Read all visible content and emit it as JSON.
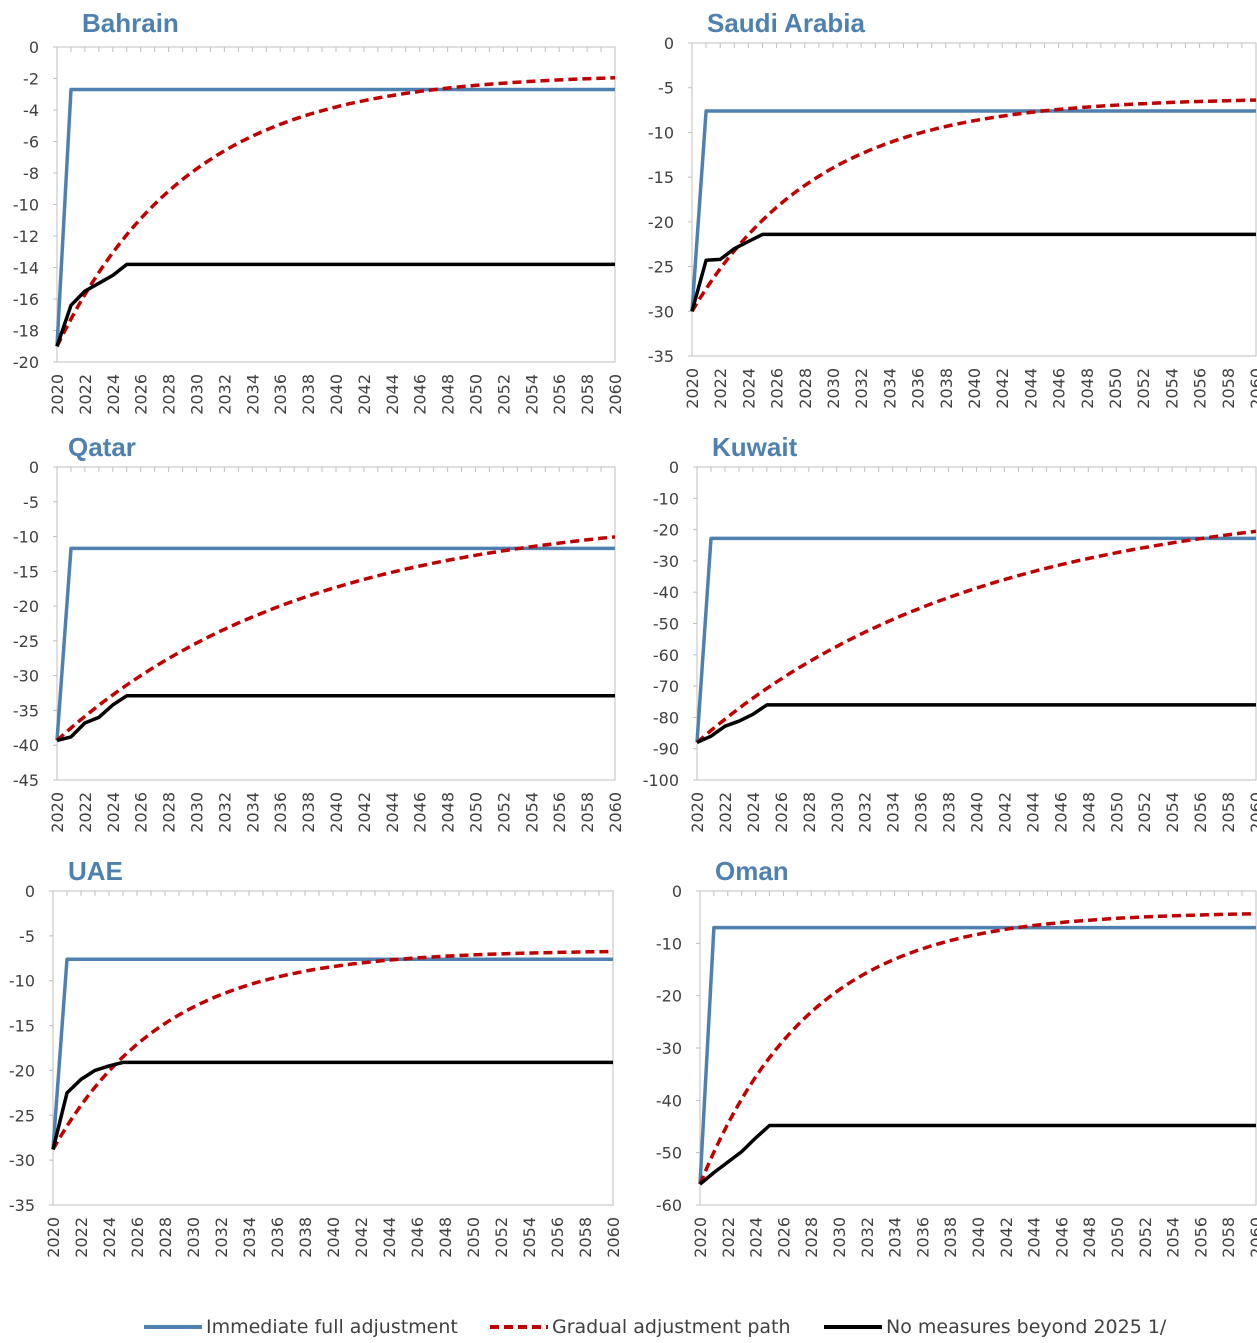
{
  "colors": {
    "immediate": "#4f81b0",
    "gradual": "#c00000",
    "no_measures": "#000000",
    "title": "#4f81b0",
    "axis": "#bfbfbf",
    "tick_text": "#404040"
  },
  "legend": {
    "immediate": "Immediate full adjustment",
    "gradual": "Gradual adjustment path",
    "no_measures": "No measures beyond 2025 1/"
  },
  "chart_data": [
    {
      "type": "line",
      "title": "Bahrain",
      "xlabel": "",
      "ylabel": "",
      "x_range": [
        2020,
        2060
      ],
      "x_ticks": [
        2020,
        2022,
        2024,
        2026,
        2028,
        2030,
        2032,
        2034,
        2036,
        2038,
        2040,
        2042,
        2044,
        2046,
        2048,
        2050,
        2052,
        2054,
        2056,
        2058,
        2060
      ],
      "ylim": [
        -20,
        0
      ],
      "y_ticks": [
        0,
        -2,
        -4,
        -6,
        -8,
        -10,
        -12,
        -14,
        -16,
        -18,
        -20
      ],
      "grid": false,
      "legend_position": "bottom",
      "series": [
        {
          "key": "immediate",
          "x": [
            2020,
            2021,
            2060
          ],
          "values": [
            -19,
            -2.7,
            -2.7
          ]
        },
        {
          "key": "gradual",
          "tau": 9.5,
          "start": -19,
          "end": -1.7,
          "x": [
            2020,
            2060
          ]
        },
        {
          "key": "no_measures",
          "x": [
            2020,
            2021,
            2022,
            2023,
            2024,
            2025,
            2060
          ],
          "values": [
            -19,
            -16.4,
            -15.5,
            -15.0,
            -14.5,
            -13.8,
            -13.8
          ]
        }
      ]
    },
    {
      "type": "line",
      "title": "Saudi Arabia",
      "xlabel": "",
      "ylabel": "",
      "x_range": [
        2020,
        2060
      ],
      "x_ticks": [
        2020,
        2022,
        2024,
        2026,
        2028,
        2030,
        2032,
        2034,
        2036,
        2038,
        2040,
        2042,
        2044,
        2046,
        2048,
        2050,
        2052,
        2054,
        2056,
        2058,
        2060
      ],
      "ylim": [
        -35,
        0
      ],
      "y_ticks": [
        0,
        -5,
        -10,
        -15,
        -20,
        -25,
        -30,
        -35
      ],
      "grid": false,
      "legend_position": "bottom",
      "series": [
        {
          "key": "immediate",
          "x": [
            2020,
            2021,
            2060
          ],
          "values": [
            -30,
            -7.6,
            -7.6
          ]
        },
        {
          "key": "gradual",
          "tau": 9,
          "start": -30,
          "end": -6.1,
          "x": [
            2020,
            2060
          ]
        },
        {
          "key": "no_measures",
          "x": [
            2020,
            2021,
            2022,
            2023,
            2024,
            2025,
            2060
          ],
          "values": [
            -30,
            -24.3,
            -24.2,
            -23.0,
            -22.2,
            -21.4,
            -21.4
          ]
        }
      ]
    },
    {
      "type": "line",
      "title": "Qatar",
      "xlabel": "",
      "ylabel": "",
      "x_range": [
        2020,
        2060
      ],
      "x_ticks": [
        2020,
        2022,
        2024,
        2026,
        2028,
        2030,
        2032,
        2034,
        2036,
        2038,
        2040,
        2042,
        2044,
        2046,
        2048,
        2050,
        2052,
        2054,
        2056,
        2058,
        2060
      ],
      "ylim": [
        -45,
        0
      ],
      "y_ticks": [
        0,
        -5,
        -10,
        -15,
        -20,
        -25,
        -30,
        -35,
        -40,
        -45
      ],
      "grid": false,
      "legend_position": "bottom",
      "series": [
        {
          "key": "immediate",
          "x": [
            2020,
            2021,
            2060
          ],
          "values": [
            -39.3,
            -11.7,
            -11.7
          ]
        },
        {
          "key": "gradual",
          "tau": 18,
          "start": -39.3,
          "end": -6.5,
          "x": [
            2020,
            2060
          ]
        },
        {
          "key": "no_measures",
          "x": [
            2020,
            2021,
            2022,
            2023,
            2024,
            2025,
            2060
          ],
          "values": [
            -39.3,
            -38.8,
            -36.8,
            -36.0,
            -34.2,
            -32.9,
            -32.9
          ]
        }
      ]
    },
    {
      "type": "line",
      "title": "Kuwait",
      "xlabel": "",
      "ylabel": "",
      "x_range": [
        2020,
        2060
      ],
      "x_ticks": [
        2020,
        2022,
        2024,
        2026,
        2028,
        2030,
        2032,
        2034,
        2036,
        2038,
        2040,
        2042,
        2044,
        2046,
        2048,
        2050,
        2052,
        2054,
        2056,
        2058,
        2060
      ],
      "ylim": [
        -100,
        0
      ],
      "y_ticks": [
        0,
        -10,
        -20,
        -30,
        -40,
        -50,
        -60,
        -70,
        -80,
        -90,
        -100
      ],
      "grid": false,
      "legend_position": "bottom",
      "series": [
        {
          "key": "immediate",
          "x": [
            2020,
            2021,
            2060
          ],
          "values": [
            -88,
            -22.8,
            -22.8
          ]
        },
        {
          "key": "gradual",
          "tau": 20,
          "start": -88,
          "end": -10,
          "x": [
            2020,
            2060
          ]
        },
        {
          "key": "no_measures",
          "x": [
            2020,
            2021,
            2022,
            2023,
            2024,
            2025,
            2060
          ],
          "values": [
            -88,
            -86,
            -82.8,
            -81.2,
            -79,
            -76,
            -76
          ]
        }
      ]
    },
    {
      "type": "line",
      "title": "UAE",
      "xlabel": "",
      "ylabel": "",
      "x_range": [
        2020,
        2060
      ],
      "x_ticks": [
        2020,
        2022,
        2024,
        2026,
        2028,
        2030,
        2032,
        2034,
        2036,
        2038,
        2040,
        2042,
        2044,
        2046,
        2048,
        2050,
        2052,
        2054,
        2056,
        2058,
        2060
      ],
      "ylim": [
        -35,
        0
      ],
      "y_ticks": [
        0,
        -5,
        -10,
        -15,
        -20,
        -25,
        -30,
        -35
      ],
      "grid": false,
      "legend_position": "bottom",
      "series": [
        {
          "key": "immediate",
          "x": [
            2020,
            2021,
            2060
          ],
          "values": [
            -28.8,
            -7.6,
            -7.6
          ]
        },
        {
          "key": "gradual",
          "tau": 8,
          "start": -28.8,
          "end": -6.6,
          "x": [
            2020,
            2060
          ]
        },
        {
          "key": "no_measures",
          "x": [
            2020,
            2021,
            2022,
            2023,
            2024,
            2025,
            2060
          ],
          "values": [
            -28.8,
            -22.5,
            -21.0,
            -20.0,
            -19.5,
            -19.1,
            -19.1
          ]
        }
      ]
    },
    {
      "type": "line",
      "title": "Oman",
      "xlabel": "",
      "ylabel": "",
      "x_range": [
        2020,
        2060
      ],
      "x_ticks": [
        2020,
        2022,
        2024,
        2026,
        2028,
        2030,
        2032,
        2034,
        2036,
        2038,
        2040,
        2042,
        2044,
        2046,
        2048,
        2050,
        2052,
        2054,
        2056,
        2058,
        2060
      ],
      "ylim": [
        -60,
        0
      ],
      "y_ticks": [
        0,
        -10,
        -20,
        -30,
        -40,
        -50,
        -60
      ],
      "grid": false,
      "legend_position": "bottom",
      "series": [
        {
          "key": "immediate",
          "x": [
            2020,
            2021,
            2060
          ],
          "values": [
            -56,
            -7,
            -7
          ]
        },
        {
          "key": "gradual",
          "tau": 8,
          "start": -56,
          "end": -4,
          "x": [
            2020,
            2060
          ]
        },
        {
          "key": "no_measures",
          "x": [
            2020,
            2021,
            2022,
            2023,
            2024,
            2025,
            2060
          ],
          "values": [
            -56,
            -53.8,
            -51.8,
            -49.8,
            -47.2,
            -44.8,
            -44.8
          ]
        }
      ]
    }
  ]
}
